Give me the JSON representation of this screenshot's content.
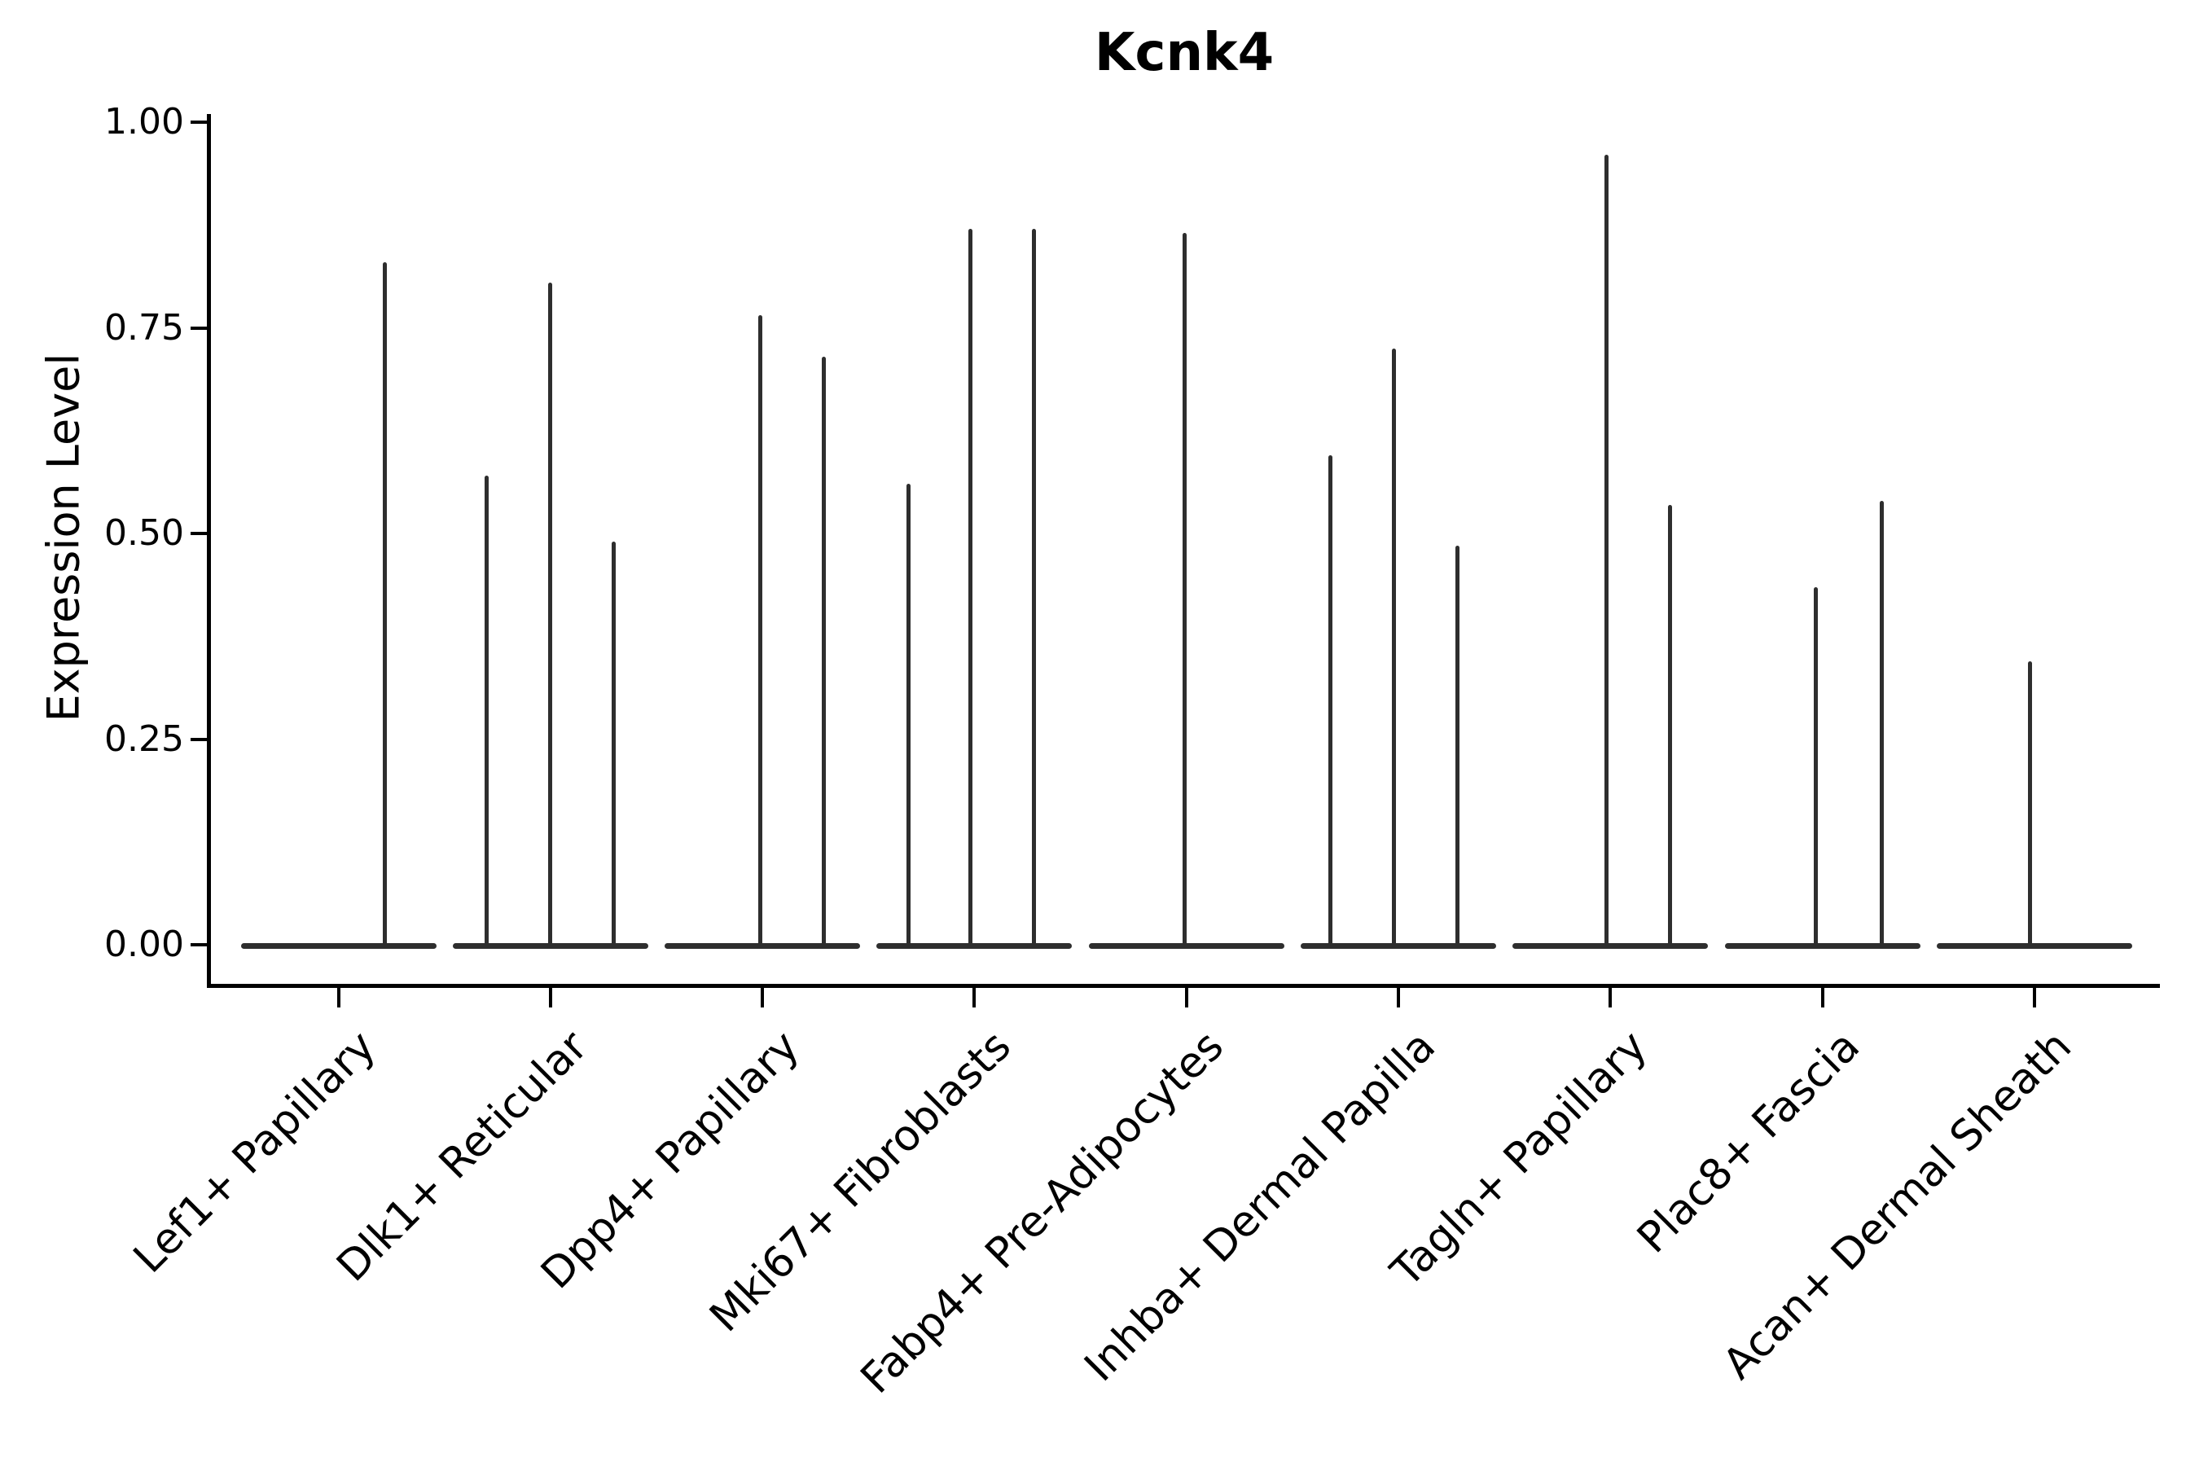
{
  "chart_data": {
    "type": "violin",
    "title": "Kcnk4",
    "ylabel": "Expression Level",
    "xlabel": "",
    "ylim": [
      0,
      1.0
    ],
    "yticks": [
      1.0,
      0.75,
      0.5,
      0.25,
      0.0
    ],
    "ytick_labels": [
      "1.00",
      "0.75",
      "0.50",
      "0.25",
      "0.00"
    ],
    "grid": false,
    "legend": false,
    "line_color": "#2e2e2e",
    "axis_color": "#000000",
    "background_color": "#ffffff",
    "categories": [
      "Lef1+ Papillary",
      "Dlk1+ Reticular",
      "Dpp4+ Papillary",
      "Mki67+ Fibroblasts",
      "Fabp4+ Pre-Adipocytes",
      "Inhba+ Dermal Papilla",
      "Tagln+ Papillary",
      "Plac8+ Fascia",
      "Acan+ Dermal Sheath"
    ],
    "violin_body": {
      "value": 0.0,
      "halfwidth_fraction": 0.46
    },
    "violins": [
      {
        "category": "Lef1+ Papillary",
        "spikes": [
          {
            "offset": 0.22,
            "value": 0.83
          }
        ]
      },
      {
        "category": "Dlk1+ Reticular",
        "spikes": [
          {
            "offset": -0.3,
            "value": 0.57
          },
          {
            "offset": 0.0,
            "value": 0.805
          },
          {
            "offset": 0.3,
            "value": 0.49
          }
        ]
      },
      {
        "category": "Dpp4+ Papillary",
        "spikes": [
          {
            "offset": -0.01,
            "value": 0.765
          },
          {
            "offset": 0.29,
            "value": 0.715
          }
        ]
      },
      {
        "category": "Mki67+ Fibroblasts",
        "spikes": [
          {
            "offset": -0.31,
            "value": 0.56
          },
          {
            "offset": -0.02,
            "value": 0.87
          },
          {
            "offset": 0.28,
            "value": 0.87
          }
        ]
      },
      {
        "category": "Fabp4+ Pre-Adipocytes",
        "spikes": [
          {
            "offset": -0.01,
            "value": 0.865
          }
        ]
      },
      {
        "category": "Inhba+ Dermal Papilla",
        "spikes": [
          {
            "offset": -0.32,
            "value": 0.595
          },
          {
            "offset": -0.02,
            "value": 0.725
          },
          {
            "offset": 0.28,
            "value": 0.485
          }
        ]
      },
      {
        "category": "Tagln+ Papillary",
        "spikes": [
          {
            "offset": -0.02,
            "value": 0.96
          },
          {
            "offset": 0.28,
            "value": 0.535
          }
        ]
      },
      {
        "category": "Plac8+ Fascia",
        "spikes": [
          {
            "offset": -0.03,
            "value": 0.435
          },
          {
            "offset": 0.28,
            "value": 0.54
          }
        ]
      },
      {
        "category": "Acan+ Dermal Sheath",
        "spikes": [
          {
            "offset": -0.02,
            "value": 0.345
          }
        ]
      }
    ]
  }
}
